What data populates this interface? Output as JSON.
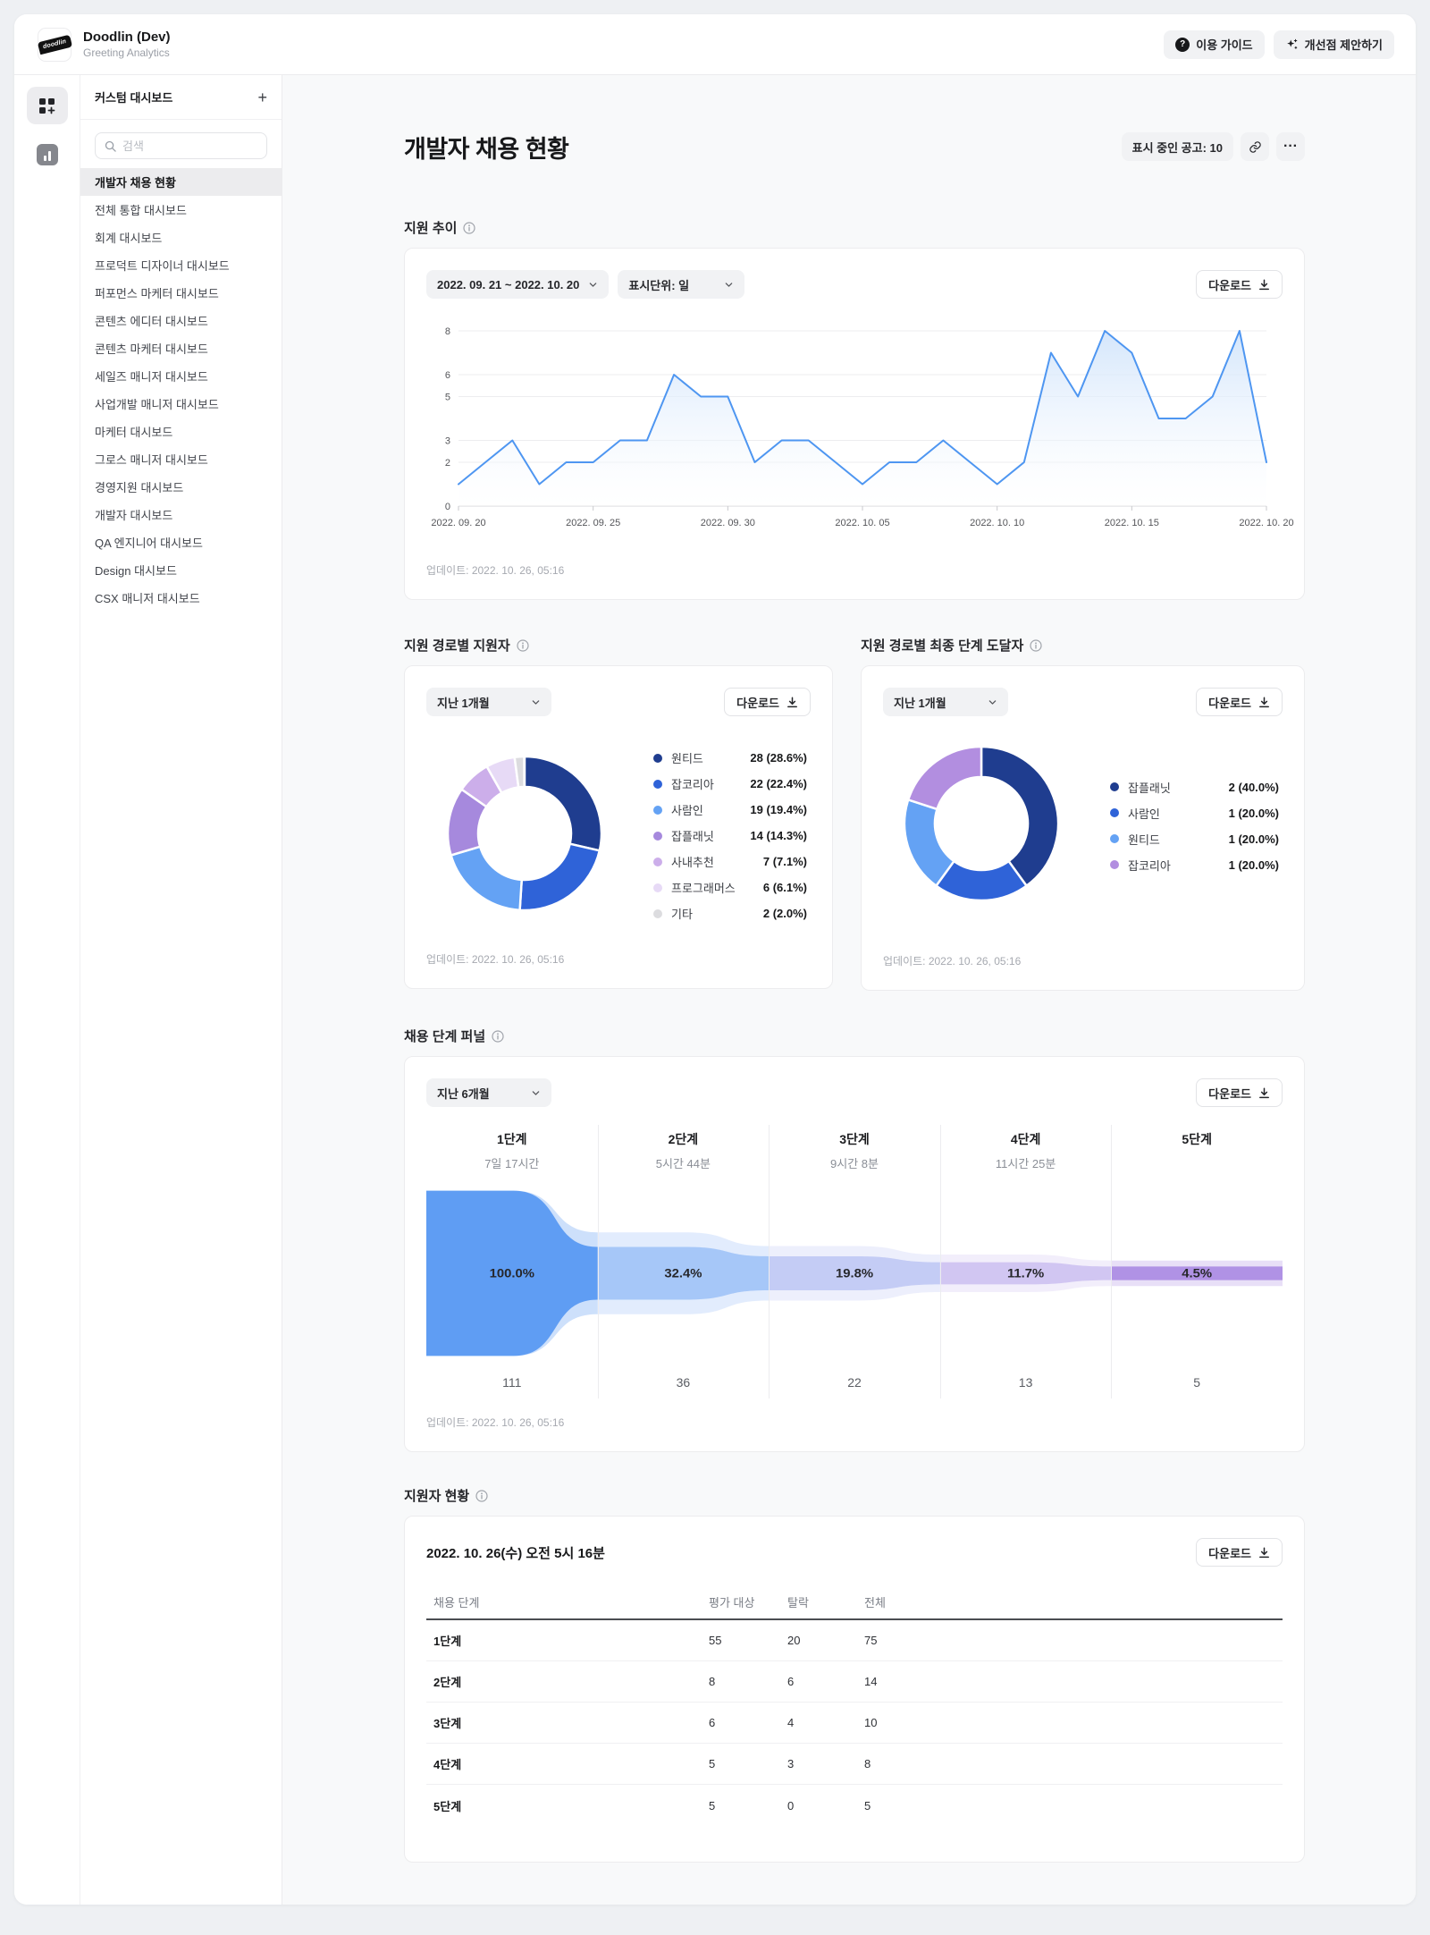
{
  "header": {
    "logo_text": "doodlin",
    "app_title": "Doodlin (Dev)",
    "app_subtitle": "Greeting Analytics",
    "guide_button": "이용 가이드",
    "suggest_button": "개선점 제안하기"
  },
  "sidebar": {
    "panel_title": "커스텀 대시보드",
    "add_button": "+",
    "search_placeholder": "검색",
    "selected_index": 0,
    "items": [
      "개발자 채용 현황",
      "전체 통합 대시보드",
      "회계 대시보드",
      "프로덕트 디자이너 대시보드",
      "퍼포먼스 마케터 대시보드",
      "콘텐츠 에디터 대시보드",
      "콘텐츠 마케터 대시보드",
      "세일즈 매니저 대시보드",
      "사업개발 매니저 대시보드",
      "마케터 대시보드",
      "그로스 매니저 대시보드",
      "경영지원 대시보드",
      "개발자 대시보드",
      "QA 엔지니어 대시보드",
      "Design 대시보드",
      "CSX 매니저 대시보드"
    ]
  },
  "page": {
    "title": "개발자 채용 현황",
    "ads_badge": "표시 중인 공고: 10"
  },
  "trend": {
    "section_title": "지원 추이",
    "date_range": "2022. 09. 21 ~ 2022. 10. 20",
    "unit_label": "표시단위: 일",
    "download_label": "다운로드",
    "updated": "업데이트: 2022. 10. 26, 05:16"
  },
  "sources_all": {
    "section_title": "지원 경로별 지원자",
    "period_label": "지난 1개월",
    "download_label": "다운로드",
    "updated": "업데이트: 2022. 10. 26, 05:16"
  },
  "sources_final": {
    "section_title": "지원 경로별 최종 단계 도달자",
    "period_label": "지난 1개월",
    "download_label": "다운로드",
    "updated": "업데이트: 2022. 10. 26, 05:16"
  },
  "funnel": {
    "section_title": "채용 단계 퍼널",
    "period_label": "지난 6개월",
    "download_label": "다운로드",
    "updated": "업데이트: 2022. 10. 26, 05:16"
  },
  "table": {
    "section_title": "지원자 현황",
    "card_title": "2022. 10. 26(수) 오전 5시 16분",
    "download_label": "다운로드",
    "columns": [
      "채용 단계",
      "평가 대상",
      "탈락",
      "전체"
    ],
    "rows": [
      [
        "1단계",
        "55",
        "20",
        "75"
      ],
      [
        "2단계",
        "8",
        "6",
        "14"
      ],
      [
        "3단계",
        "6",
        "4",
        "10"
      ],
      [
        "4단계",
        "5",
        "3",
        "8"
      ],
      [
        "5단계",
        "5",
        "0",
        "5"
      ]
    ]
  },
  "chart_data": [
    {
      "id": "trend",
      "type": "area",
      "title": "지원 추이 (일별 지원자 수)",
      "x_tick_labels": [
        "2022. 09. 20",
        "2022. 09. 25",
        "2022. 09. 30",
        "2022. 10. 05",
        "2022. 10. 10",
        "2022. 10. 15",
        "2022. 10. 20"
      ],
      "x_tick_positions": [
        0,
        5,
        10,
        15,
        20,
        25,
        30
      ],
      "values": [
        1,
        2,
        3,
        1,
        2,
        2,
        3,
        3,
        6,
        5,
        5,
        2,
        3,
        3,
        2,
        1,
        2,
        2,
        3,
        2,
        1,
        2,
        7,
        5,
        8,
        7,
        4,
        4,
        5,
        8,
        2
      ],
      "y_ticks": [
        0,
        2,
        3,
        5,
        6,
        8
      ],
      "ylim": [
        0,
        8
      ],
      "grid": true,
      "legend": "none",
      "line_color": "#4e96f1",
      "area_top_color": "#cfe3fb",
      "area_bottom_color": "#ffffff"
    },
    {
      "id": "sources_all",
      "type": "donut",
      "title": "지원 경로별 지원자",
      "segments": [
        {
          "label": "원티드",
          "value": 28,
          "pct": 28.6,
          "value_label": "28 (28.6%)",
          "color": "#1f3d8f"
        },
        {
          "label": "잡코리아",
          "value": 22,
          "pct": 22.4,
          "value_label": "22 (22.4%)",
          "color": "#2f63d8"
        },
        {
          "label": "사람인",
          "value": 19,
          "pct": 19.4,
          "value_label": "19 (19.4%)",
          "color": "#64a2f4"
        },
        {
          "label": "잡플래닛",
          "value": 14,
          "pct": 14.3,
          "value_label": "14 (14.3%)",
          "color": "#a689dd"
        },
        {
          "label": "사내추천",
          "value": 7,
          "pct": 7.1,
          "value_label": "7 (7.1%)",
          "color": "#ccaeea"
        },
        {
          "label": "프로그래머스",
          "value": 6,
          "pct": 6.1,
          "value_label": "6 (6.1%)",
          "color": "#e7daf6"
        },
        {
          "label": "기타",
          "value": 2,
          "pct": 2.0,
          "value_label": "2 (2.0%)",
          "color": "#dcdcdf"
        }
      ]
    },
    {
      "id": "sources_final",
      "type": "donut",
      "title": "지원 경로별 최종 단계 도달자",
      "segments": [
        {
          "label": "잡플래닛",
          "value": 2,
          "pct": 40.0,
          "value_label": "2 (40.0%)",
          "color": "#1f3d8f"
        },
        {
          "label": "사람인",
          "value": 1,
          "pct": 20.0,
          "value_label": "1 (20.0%)",
          "color": "#2f63d8"
        },
        {
          "label": "원티드",
          "value": 1,
          "pct": 20.0,
          "value_label": "1 (20.0%)",
          "color": "#64a2f4"
        },
        {
          "label": "잡코리아",
          "value": 1,
          "pct": 20.0,
          "value_label": "1 (20.0%)",
          "color": "#b28ee0"
        }
      ]
    },
    {
      "id": "funnel",
      "type": "funnel",
      "title": "채용 단계 퍼널",
      "stages": [
        {
          "label": "1단계",
          "duration": "7일 17시간",
          "percent": "100.0%",
          "count": "111",
          "core": 194,
          "halo": 194,
          "color": "#5f9df3",
          "halo_color": "#9cc1f8"
        },
        {
          "label": "2단계",
          "duration": "5시간 44분",
          "percent": "32.4%",
          "count": "36",
          "core": 62,
          "halo": 96,
          "color": "#a6c7f8",
          "halo_color": "#c6dafb"
        },
        {
          "label": "3단계",
          "duration": "9시간 8분",
          "percent": "19.8%",
          "count": "22",
          "core": 40,
          "halo": 64,
          "color": "#c4ccf5",
          "halo_color": "#dbe0f9"
        },
        {
          "label": "4단계",
          "duration": "11시간 25분",
          "percent": "11.7%",
          "count": "13",
          "core": 26,
          "halo": 44,
          "color": "#d1c6f2",
          "halo_color": "#e5ddf8"
        },
        {
          "label": "5단계",
          "duration": "",
          "percent": "4.5%",
          "count": "5",
          "core": 16,
          "halo": 30,
          "color": "#b092e5",
          "halo_color": "#d2c0ef"
        }
      ]
    }
  ]
}
